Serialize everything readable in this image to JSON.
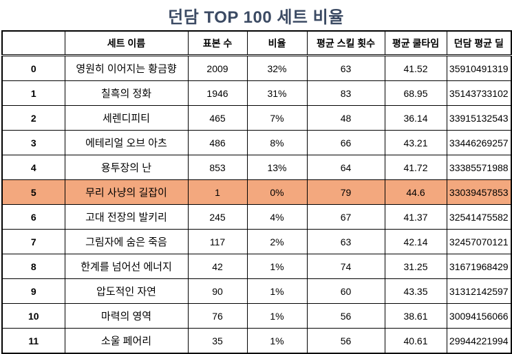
{
  "title": "던담 TOP 100 세트 비율",
  "colors": {
    "title_text": "#3b4a63",
    "highlight_row": "#f3a87e",
    "table_border": "#000000",
    "background": "#ffffff"
  },
  "chart_data": {
    "type": "table",
    "title": "던담 TOP 100 세트 비율",
    "columns": [
      "",
      "세트 이름",
      "표본 수",
      "비율",
      "평균 스킬 횟수",
      "평균 쿨타임",
      "던담 평균 딜"
    ],
    "highlighted_row_index": "5",
    "rows": [
      {
        "index": "0",
        "values": [
          "영원히 이어지는 황금향",
          "2009",
          "32%",
          "63",
          "41.52",
          "35910491319"
        ],
        "highlighted": false
      },
      {
        "index": "1",
        "values": [
          "칠흑의 정화",
          "1946",
          "31%",
          "83",
          "68.95",
          "35143733102"
        ],
        "highlighted": false
      },
      {
        "index": "2",
        "values": [
          "세렌디피티",
          "465",
          "7%",
          "48",
          "36.14",
          "33915132543"
        ],
        "highlighted": false
      },
      {
        "index": "3",
        "values": [
          "에테리얼 오브 아츠",
          "486",
          "8%",
          "66",
          "43.21",
          "33446269257"
        ],
        "highlighted": false
      },
      {
        "index": "4",
        "values": [
          "용투장의 난",
          "853",
          "13%",
          "64",
          "41.72",
          "33385571988"
        ],
        "highlighted": false
      },
      {
        "index": "5",
        "values": [
          "무리 사냥의 길잡이",
          "1",
          "0%",
          "79",
          "44.6",
          "33039457853"
        ],
        "highlighted": true
      },
      {
        "index": "6",
        "values": [
          "고대 전장의 발키리",
          "245",
          "4%",
          "67",
          "41.37",
          "32541475582"
        ],
        "highlighted": false
      },
      {
        "index": "7",
        "values": [
          "그림자에 숨은 죽음",
          "117",
          "2%",
          "63",
          "42.14",
          "32457070121"
        ],
        "highlighted": false
      },
      {
        "index": "8",
        "values": [
          "한계를 넘어선 에너지",
          "42",
          "1%",
          "74",
          "31.25",
          "31671968429"
        ],
        "highlighted": false
      },
      {
        "index": "9",
        "values": [
          "압도적인 자연",
          "90",
          "1%",
          "60",
          "43.35",
          "31312142597"
        ],
        "highlighted": false
      },
      {
        "index": "10",
        "values": [
          "마력의 영역",
          "76",
          "1%",
          "56",
          "38.61",
          "30094156066"
        ],
        "highlighted": false
      },
      {
        "index": "11",
        "values": [
          "소울 페어리",
          "35",
          "1%",
          "56",
          "40.61",
          "29944221994"
        ],
        "highlighted": false
      }
    ]
  }
}
